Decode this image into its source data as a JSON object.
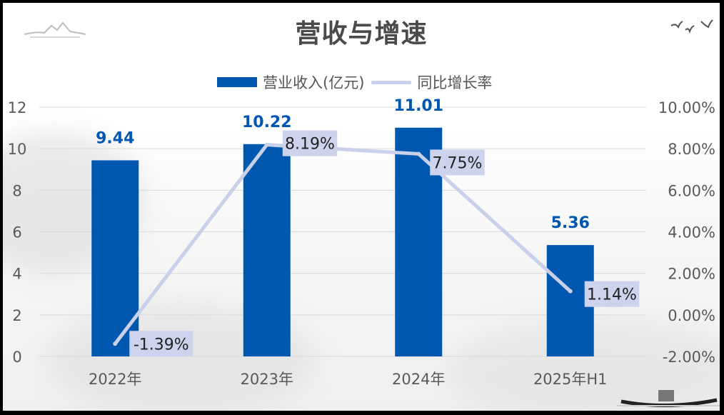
{
  "title": "营收与增速",
  "legend": {
    "bar_label": "营业收入(亿元)",
    "line_label": "同比增长率"
  },
  "colors": {
    "bar": "#0057B0",
    "line": "#C9D0EA",
    "label_box": "#CDD3EC",
    "grid": "#D9D9D9"
  },
  "chart_data": {
    "type": "bar",
    "title": "营收与增速",
    "categories": [
      "2022年",
      "2023年",
      "2024年",
      "2025年H1"
    ],
    "series": [
      {
        "name": "营业收入(亿元)",
        "type": "bar",
        "axis": "left",
        "values": [
          9.44,
          10.22,
          11.01,
          5.36
        ],
        "labels": [
          "9.44",
          "10.22",
          "11.01",
          "5.36"
        ]
      },
      {
        "name": "同比增长率",
        "type": "line",
        "axis": "right",
        "values": [
          -1.39,
          8.19,
          7.75,
          1.14
        ],
        "labels": [
          "-1.39%",
          "8.19%",
          "7.75%",
          "1.14%"
        ]
      }
    ],
    "y_left": {
      "min": 0,
      "max": 12,
      "ticks": [
        "0",
        "2",
        "4",
        "6",
        "8",
        "10",
        "12"
      ]
    },
    "y_right": {
      "min": -2,
      "max": 10,
      "ticks": [
        "-2.00%",
        "0.00%",
        "2.00%",
        "4.00%",
        "6.00%",
        "8.00%",
        "10.00%"
      ]
    },
    "grid": true,
    "legend_position": "top"
  }
}
